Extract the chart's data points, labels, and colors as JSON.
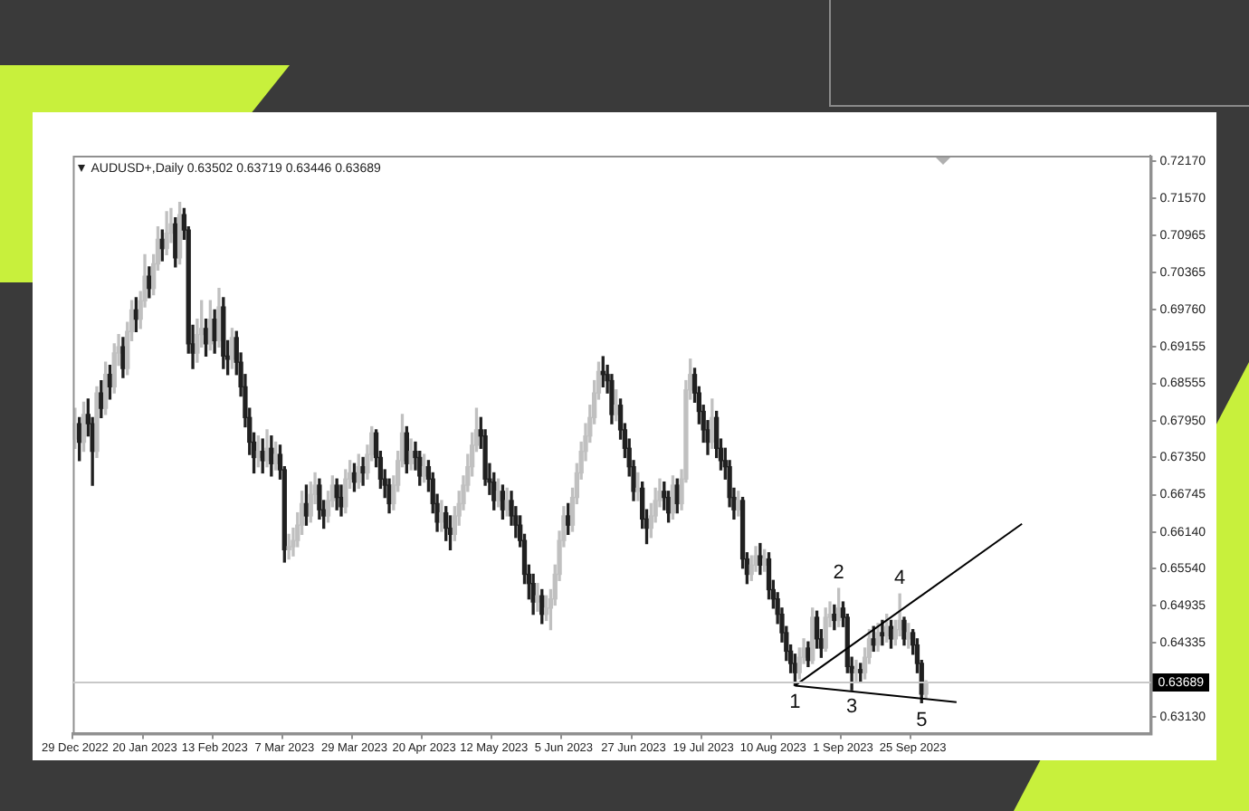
{
  "chart_data": {
    "type": "candlestick",
    "title": "AUDUSD+,Daily 0.63502 0.63719 0.63446 0.63689",
    "categories": [
      "29 Dec 2022",
      null,
      null,
      null,
      null,
      null,
      null,
      null,
      null,
      null,
      null,
      null,
      null,
      null,
      null,
      null,
      "20 Jan 2023",
      null,
      null,
      null,
      null,
      null,
      null,
      null,
      null,
      null,
      null,
      null,
      null,
      null,
      null,
      null,
      "13 Feb 2023",
      null,
      null,
      null,
      null,
      null,
      null,
      null,
      null,
      null,
      null,
      null,
      null,
      null,
      null,
      null,
      "7 Mar 2023",
      null,
      null,
      null,
      null,
      null,
      null,
      null,
      null,
      null,
      null,
      null,
      null,
      null,
      null,
      null,
      "29 Mar 2023",
      null,
      null,
      null,
      null,
      null,
      null,
      null,
      null,
      null,
      null,
      null,
      null,
      null,
      null,
      null,
      "20 Apr 2023",
      null,
      null,
      null,
      null,
      null,
      null,
      null,
      null,
      null,
      null,
      null,
      null,
      null,
      null,
      null,
      "12 May 2023",
      null,
      null,
      null,
      null,
      null,
      null,
      null,
      null,
      null,
      null,
      null,
      null,
      null,
      null,
      null,
      "5 Jun 2023",
      null,
      null,
      null,
      null,
      null,
      null,
      null,
      null,
      null,
      null,
      null,
      null,
      null,
      null,
      null,
      "27 Jun 2023",
      null,
      null,
      null,
      null,
      null,
      null,
      null,
      null,
      null,
      null,
      null,
      null,
      null,
      null,
      null,
      "19 Jul 2023",
      null,
      null,
      null,
      null,
      null,
      null,
      null,
      null,
      null,
      null,
      null,
      null,
      null,
      null,
      null,
      "10 Aug 2023",
      null,
      null,
      null,
      null,
      null,
      null,
      null,
      null,
      null,
      null,
      null,
      null,
      null,
      null,
      null,
      "1 Sep 2023",
      null,
      null,
      null,
      null,
      null,
      null,
      null,
      null,
      null,
      null,
      null,
      null,
      null,
      null,
      null,
      "25 Sep 2023",
      null,
      null,
      null,
      null,
      null,
      null,
      null,
      null,
      null,
      null,
      null,
      null,
      null,
      null,
      null,
      null,
      null,
      null,
      null,
      null,
      null,
      null,
      null,
      null,
      null,
      null,
      null,
      null,
      null,
      null,
      null,
      null,
      null,
      null,
      null,
      null,
      null,
      null,
      null,
      null,
      null,
      null,
      null,
      null,
      null,
      null,
      null,
      null,
      null,
      null,
      null,
      null,
      null,
      null
    ],
    "ohlc": [
      [
        0.6765,
        0.6815,
        0.675,
        0.679
      ],
      [
        0.679,
        0.68,
        0.673,
        0.676
      ],
      [
        0.676,
        0.6825,
        0.6745,
        0.6805
      ],
      [
        0.6805,
        0.683,
        0.677,
        0.679
      ],
      [
        0.679,
        0.68,
        0.669,
        0.6745
      ],
      [
        0.6745,
        0.685,
        0.6735,
        0.684
      ],
      [
        0.684,
        0.686,
        0.68,
        0.6815
      ],
      [
        0.6815,
        0.689,
        0.6805,
        0.687
      ],
      [
        0.687,
        0.6885,
        0.683,
        0.685
      ],
      [
        0.685,
        0.692,
        0.684,
        0.6905
      ],
      [
        0.6905,
        0.6935,
        0.6885,
        0.6915
      ],
      [
        0.6915,
        0.693,
        0.6865,
        0.688
      ],
      [
        0.688,
        0.6955,
        0.687,
        0.694
      ],
      [
        0.694,
        0.699,
        0.6925,
        0.6975
      ],
      [
        0.6975,
        0.6995,
        0.694,
        0.696
      ],
      [
        0.696,
        0.7005,
        0.6945,
        0.699
      ],
      [
        0.699,
        0.7065,
        0.698,
        0.703
      ],
      [
        0.703,
        0.7045,
        0.6995,
        0.701
      ],
      [
        0.701,
        0.7065,
        0.7,
        0.705
      ],
      [
        0.705,
        0.711,
        0.704,
        0.709
      ],
      [
        0.709,
        0.7105,
        0.7055,
        0.7075
      ],
      [
        0.7075,
        0.7135,
        0.7065,
        0.71
      ],
      [
        0.71,
        0.714,
        0.7085,
        0.7115
      ],
      [
        0.7115,
        0.7125,
        0.7045,
        0.706
      ],
      [
        0.706,
        0.715,
        0.705,
        0.713
      ],
      [
        0.713,
        0.714,
        0.709,
        0.7105
      ],
      [
        0.7105,
        0.711,
        0.6905,
        0.692
      ],
      [
        0.692,
        0.695,
        0.688,
        0.6905
      ],
      [
        0.6905,
        0.696,
        0.689,
        0.6935
      ],
      [
        0.6935,
        0.699,
        0.6915,
        0.6945
      ],
      [
        0.6945,
        0.696,
        0.69,
        0.692
      ],
      [
        0.692,
        0.699,
        0.691,
        0.696
      ],
      [
        0.696,
        0.6975,
        0.6905,
        0.6925
      ],
      [
        0.6925,
        0.701,
        0.6915,
        0.698
      ],
      [
        0.698,
        0.6995,
        0.688,
        0.69
      ],
      [
        0.69,
        0.6925,
        0.687,
        0.6895
      ],
      [
        0.6895,
        0.6945,
        0.688,
        0.693
      ],
      [
        0.693,
        0.694,
        0.687,
        0.689
      ],
      [
        0.689,
        0.6905,
        0.6835,
        0.685
      ],
      [
        0.685,
        0.687,
        0.6785,
        0.68
      ],
      [
        0.68,
        0.6815,
        0.674,
        0.676
      ],
      [
        0.676,
        0.6775,
        0.671,
        0.6735
      ],
      [
        0.6735,
        0.677,
        0.672,
        0.6745
      ],
      [
        0.6745,
        0.6765,
        0.671,
        0.673
      ],
      [
        0.673,
        0.678,
        0.672,
        0.675
      ],
      [
        0.675,
        0.677,
        0.6705,
        0.6725
      ],
      [
        0.6725,
        0.676,
        0.6715,
        0.674
      ],
      [
        0.674,
        0.6755,
        0.67,
        0.6715
      ],
      [
        0.6715,
        0.672,
        0.6565,
        0.6585
      ],
      [
        0.6585,
        0.661,
        0.657,
        0.659
      ],
      [
        0.659,
        0.662,
        0.6575,
        0.66
      ],
      [
        0.66,
        0.6645,
        0.659,
        0.6625
      ],
      [
        0.6625,
        0.668,
        0.661,
        0.666
      ],
      [
        0.666,
        0.669,
        0.6625,
        0.664
      ],
      [
        0.664,
        0.6695,
        0.663,
        0.6675
      ],
      [
        0.6675,
        0.671,
        0.666,
        0.669
      ],
      [
        0.669,
        0.67,
        0.6635,
        0.665
      ],
      [
        0.665,
        0.6665,
        0.662,
        0.664
      ],
      [
        0.664,
        0.668,
        0.663,
        0.6665
      ],
      [
        0.6665,
        0.6705,
        0.6655,
        0.669
      ],
      [
        0.669,
        0.67,
        0.665,
        0.667
      ],
      [
        0.667,
        0.669,
        0.664,
        0.6655
      ],
      [
        0.6655,
        0.6715,
        0.6645,
        0.67
      ],
      [
        0.67,
        0.673,
        0.6685,
        0.671
      ],
      [
        0.671,
        0.6725,
        0.668,
        0.6695
      ],
      [
        0.6695,
        0.674,
        0.6685,
        0.672
      ],
      [
        0.672,
        0.6735,
        0.669,
        0.671
      ],
      [
        0.671,
        0.6755,
        0.67,
        0.674
      ],
      [
        0.674,
        0.6785,
        0.673,
        0.6775
      ],
      [
        0.6775,
        0.678,
        0.672,
        0.6735
      ],
      [
        0.6735,
        0.6745,
        0.6685,
        0.67
      ],
      [
        0.67,
        0.6715,
        0.667,
        0.669
      ],
      [
        0.669,
        0.67,
        0.6645,
        0.666
      ],
      [
        0.666,
        0.6705,
        0.665,
        0.669
      ],
      [
        0.669,
        0.6745,
        0.668,
        0.673
      ],
      [
        0.673,
        0.6805,
        0.672,
        0.6775
      ],
      [
        0.6775,
        0.6785,
        0.671,
        0.6725
      ],
      [
        0.6725,
        0.6765,
        0.6715,
        0.6745
      ],
      [
        0.6745,
        0.676,
        0.6715,
        0.6735
      ],
      [
        0.6735,
        0.6745,
        0.669,
        0.6705
      ],
      [
        0.6705,
        0.674,
        0.6695,
        0.672
      ],
      [
        0.672,
        0.673,
        0.668,
        0.67
      ],
      [
        0.67,
        0.671,
        0.6645,
        0.666
      ],
      [
        0.666,
        0.6675,
        0.6615,
        0.663
      ],
      [
        0.663,
        0.6665,
        0.6615,
        0.6645
      ],
      [
        0.6645,
        0.6655,
        0.66,
        0.662
      ],
      [
        0.662,
        0.664,
        0.6585,
        0.661
      ],
      [
        0.661,
        0.6655,
        0.66,
        0.664
      ],
      [
        0.664,
        0.668,
        0.6625,
        0.666
      ],
      [
        0.666,
        0.6705,
        0.665,
        0.669
      ],
      [
        0.669,
        0.674,
        0.668,
        0.672
      ],
      [
        0.672,
        0.6775,
        0.6705,
        0.6755
      ],
      [
        0.6755,
        0.6815,
        0.6745,
        0.678
      ],
      [
        0.678,
        0.68,
        0.675,
        0.677
      ],
      [
        0.677,
        0.678,
        0.669,
        0.67
      ],
      [
        0.67,
        0.6725,
        0.6675,
        0.6695
      ],
      [
        0.6695,
        0.671,
        0.665,
        0.6665
      ],
      [
        0.6665,
        0.67,
        0.6655,
        0.668
      ],
      [
        0.668,
        0.669,
        0.6635,
        0.665
      ],
      [
        0.665,
        0.6685,
        0.664,
        0.6665
      ],
      [
        0.6665,
        0.668,
        0.6625,
        0.664
      ],
      [
        0.664,
        0.6655,
        0.6605,
        0.6625
      ],
      [
        0.6625,
        0.664,
        0.659,
        0.66
      ],
      [
        0.66,
        0.661,
        0.653,
        0.6545
      ],
      [
        0.6545,
        0.656,
        0.6505,
        0.653
      ],
      [
        0.653,
        0.6545,
        0.648,
        0.65
      ],
      [
        0.65,
        0.653,
        0.6485,
        0.651
      ],
      [
        0.651,
        0.652,
        0.6465,
        0.648
      ],
      [
        0.648,
        0.651,
        0.647,
        0.649
      ],
      [
        0.649,
        0.652,
        0.6455,
        0.6505
      ],
      [
        0.6505,
        0.656,
        0.6495,
        0.6545
      ],
      [
        0.6545,
        0.6615,
        0.6535,
        0.66
      ],
      [
        0.66,
        0.6655,
        0.659,
        0.664
      ],
      [
        0.664,
        0.666,
        0.661,
        0.6625
      ],
      [
        0.6625,
        0.6685,
        0.6615,
        0.667
      ],
      [
        0.667,
        0.6725,
        0.666,
        0.671
      ],
      [
        0.671,
        0.676,
        0.67,
        0.6745
      ],
      [
        0.6745,
        0.679,
        0.673,
        0.677
      ],
      [
        0.677,
        0.682,
        0.676,
        0.68
      ],
      [
        0.68,
        0.686,
        0.679,
        0.684
      ],
      [
        0.684,
        0.689,
        0.683,
        0.6875
      ],
      [
        0.6875,
        0.6899,
        0.685,
        0.687
      ],
      [
        0.687,
        0.6885,
        0.684,
        0.686
      ],
      [
        0.686,
        0.687,
        0.679,
        0.6805
      ],
      [
        0.6805,
        0.6845,
        0.6795,
        0.682
      ],
      [
        0.682,
        0.683,
        0.6765,
        0.678
      ],
      [
        0.678,
        0.679,
        0.6735,
        0.675
      ],
      [
        0.675,
        0.6765,
        0.6705,
        0.672
      ],
      [
        0.672,
        0.673,
        0.6665,
        0.668
      ],
      [
        0.668,
        0.671,
        0.6665,
        0.6685
      ],
      [
        0.6685,
        0.6695,
        0.662,
        0.6635
      ],
      [
        0.6635,
        0.665,
        0.6595,
        0.662
      ],
      [
        0.662,
        0.666,
        0.6605,
        0.664
      ],
      [
        0.664,
        0.6685,
        0.663,
        0.6665
      ],
      [
        0.6665,
        0.67,
        0.6655,
        0.668
      ],
      [
        0.668,
        0.6695,
        0.665,
        0.667
      ],
      [
        0.667,
        0.668,
        0.663,
        0.6645
      ],
      [
        0.6645,
        0.6705,
        0.6635,
        0.669
      ],
      [
        0.669,
        0.67,
        0.6645,
        0.666
      ],
      [
        0.666,
        0.6715,
        0.665,
        0.67
      ],
      [
        0.67,
        0.686,
        0.6695,
        0.6845
      ],
      [
        0.6845,
        0.6895,
        0.683,
        0.687
      ],
      [
        0.687,
        0.688,
        0.6825,
        0.684
      ],
      [
        0.684,
        0.685,
        0.679,
        0.681
      ],
      [
        0.681,
        0.682,
        0.676,
        0.678
      ],
      [
        0.678,
        0.6795,
        0.674,
        0.676
      ],
      [
        0.676,
        0.683,
        0.675,
        0.68
      ],
      [
        0.68,
        0.681,
        0.6735,
        0.675
      ],
      [
        0.675,
        0.6765,
        0.6715,
        0.673
      ],
      [
        0.673,
        0.675,
        0.67,
        0.672
      ],
      [
        0.672,
        0.673,
        0.6655,
        0.667
      ],
      [
        0.667,
        0.6685,
        0.6635,
        0.665
      ],
      [
        0.665,
        0.668,
        0.664,
        0.6665
      ],
      [
        0.6665,
        0.667,
        0.6555,
        0.657
      ],
      [
        0.657,
        0.658,
        0.653,
        0.6545
      ],
      [
        0.6545,
        0.6575,
        0.6535,
        0.656
      ],
      [
        0.656,
        0.659,
        0.655,
        0.6575
      ],
      [
        0.6575,
        0.6595,
        0.6545,
        0.656
      ],
      [
        0.656,
        0.6585,
        0.655,
        0.657
      ],
      [
        0.657,
        0.658,
        0.6505,
        0.652
      ],
      [
        0.652,
        0.6535,
        0.649,
        0.6505
      ],
      [
        0.6505,
        0.6515,
        0.6465,
        0.648
      ],
      [
        0.648,
        0.649,
        0.6435,
        0.645
      ],
      [
        0.645,
        0.646,
        0.6405,
        0.642
      ],
      [
        0.642,
        0.643,
        0.6385,
        0.64
      ],
      [
        0.64,
        0.6415,
        0.6364,
        0.6385
      ],
      [
        0.6385,
        0.6425,
        0.6375,
        0.641
      ],
      [
        0.641,
        0.644,
        0.64,
        0.6425
      ],
      [
        0.6425,
        0.6435,
        0.6395,
        0.6405
      ],
      [
        0.6405,
        0.649,
        0.64,
        0.6475
      ],
      [
        0.6475,
        0.6485,
        0.6425,
        0.644
      ],
      [
        0.644,
        0.6455,
        0.641,
        0.6425
      ],
      [
        0.6425,
        0.649,
        0.642,
        0.6475
      ],
      [
        0.6475,
        0.65,
        0.646,
        0.648
      ],
      [
        0.648,
        0.6495,
        0.6455,
        0.647
      ],
      [
        0.647,
        0.6522,
        0.646,
        0.649
      ],
      [
        0.649,
        0.65,
        0.646,
        0.6475
      ],
      [
        0.6475,
        0.648,
        0.6385,
        0.6395
      ],
      [
        0.6395,
        0.641,
        0.6357,
        0.6385
      ],
      [
        0.6385,
        0.6405,
        0.637,
        0.639
      ],
      [
        0.639,
        0.64,
        0.637,
        0.6385
      ],
      [
        0.6385,
        0.6425,
        0.6375,
        0.641
      ],
      [
        0.641,
        0.6455,
        0.64,
        0.644
      ],
      [
        0.644,
        0.646,
        0.642,
        0.643
      ],
      [
        0.643,
        0.6465,
        0.642,
        0.645
      ],
      [
        0.645,
        0.647,
        0.643,
        0.6445
      ],
      [
        0.6445,
        0.648,
        0.6435,
        0.646
      ],
      [
        0.646,
        0.647,
        0.6425,
        0.644
      ],
      [
        0.644,
        0.647,
        0.643,
        0.6455
      ],
      [
        0.6455,
        0.6513,
        0.6445,
        0.647
      ],
      [
        0.647,
        0.6475,
        0.643,
        0.644
      ],
      [
        0.644,
        0.6465,
        0.6425,
        0.645
      ],
      [
        0.645,
        0.6455,
        0.6415,
        0.643
      ],
      [
        0.643,
        0.644,
        0.6385,
        0.64
      ],
      [
        0.64,
        0.6405,
        0.6336,
        0.635
      ],
      [
        0.63502,
        0.63719,
        0.63446,
        0.63689
      ],
      null,
      null,
      null,
      null,
      null,
      null,
      null,
      null,
      null,
      null,
      null,
      null,
      null,
      null,
      null,
      null,
      null,
      null,
      null,
      null,
      null,
      null,
      null,
      null,
      null,
      null,
      null,
      null,
      null,
      null,
      null,
      null,
      null,
      null,
      null,
      null,
      null,
      null,
      null,
      null,
      null,
      null,
      null,
      null,
      null,
      null,
      null,
      null,
      null,
      null,
      null
    ],
    "colors": [
      "#c0c0c0",
      "#202020",
      "#c0c0c0",
      "#202020",
      "#202020",
      "#c0c0c0",
      "#202020",
      "#c0c0c0",
      "#202020",
      "#c0c0c0",
      "#c0c0c0",
      "#202020",
      "#c0c0c0",
      "#c0c0c0",
      "#202020",
      "#c0c0c0",
      "#c0c0c0",
      "#202020",
      "#c0c0c0",
      "#c0c0c0",
      "#202020",
      "#c0c0c0",
      "#c0c0c0",
      "#202020",
      "#c0c0c0",
      "#202020",
      "#202020",
      "#202020",
      "#c0c0c0",
      "#c0c0c0",
      "#202020",
      "#c0c0c0",
      "#202020",
      "#c0c0c0",
      "#202020",
      "#202020",
      "#c0c0c0",
      "#202020",
      "#202020",
      "#202020",
      "#202020",
      "#202020",
      "#c0c0c0",
      "#202020",
      "#c0c0c0",
      "#202020",
      "#c0c0c0",
      "#202020",
      "#202020",
      "#c0c0c0",
      "#c0c0c0",
      "#c0c0c0",
      "#c0c0c0",
      "#202020",
      "#c0c0c0",
      "#c0c0c0",
      "#202020",
      "#202020",
      "#c0c0c0",
      "#c0c0c0",
      "#202020",
      "#202020",
      "#c0c0c0",
      "#c0c0c0",
      "#202020",
      "#c0c0c0",
      "#202020",
      "#c0c0c0",
      "#c0c0c0",
      "#202020",
      "#202020",
      "#202020",
      "#202020",
      "#c0c0c0",
      "#c0c0c0",
      "#c0c0c0",
      "#202020",
      "#c0c0c0",
      "#202020",
      "#202020",
      "#c0c0c0",
      "#202020",
      "#202020",
      "#202020",
      "#c0c0c0",
      "#202020",
      "#202020",
      "#c0c0c0",
      "#c0c0c0",
      "#c0c0c0",
      "#c0c0c0",
      "#c0c0c0",
      "#c0c0c0",
      "#202020",
      "#202020",
      "#202020",
      "#202020",
      "#c0c0c0",
      "#202020",
      "#c0c0c0",
      "#202020",
      "#202020",
      "#202020",
      "#202020",
      "#202020",
      "#202020",
      "#c0c0c0",
      "#202020",
      "#c0c0c0",
      "#c0c0c0",
      "#c0c0c0",
      "#c0c0c0",
      "#c0c0c0",
      "#202020",
      "#c0c0c0",
      "#c0c0c0",
      "#c0c0c0",
      "#c0c0c0",
      "#c0c0c0",
      "#c0c0c0",
      "#c0c0c0",
      "#202020",
      "#202020",
      "#202020",
      "#c0c0c0",
      "#202020",
      "#202020",
      "#202020",
      "#202020",
      "#c0c0c0",
      "#202020",
      "#202020",
      "#c0c0c0",
      "#c0c0c0",
      "#c0c0c0",
      "#202020",
      "#202020",
      "#c0c0c0",
      "#202020",
      "#c0c0c0",
      "#c0c0c0",
      "#c0c0c0",
      "#202020",
      "#202020",
      "#202020",
      "#202020",
      "#c0c0c0",
      "#202020",
      "#202020",
      "#202020",
      "#202020",
      "#202020",
      "#c0c0c0",
      "#202020",
      "#202020",
      "#c0c0c0",
      "#c0c0c0",
      "#202020",
      "#c0c0c0",
      "#202020",
      "#202020",
      "#202020",
      "#202020",
      "#202020",
      "#202020",
      "#202020",
      "#c0c0c0",
      "#c0c0c0",
      "#202020",
      "#c0c0c0",
      "#202020",
      "#202020",
      "#c0c0c0",
      "#c0c0c0",
      "#202020",
      "#c0c0c0",
      "#202020",
      "#202020",
      "#202020",
      "#c0c0c0",
      "#202020",
      "#c0c0c0",
      "#c0c0c0",
      "#202020",
      "#c0c0c0",
      "#202020",
      "#c0c0c0",
      "#202020",
      "#c0c0c0",
      "#c0c0c0",
      "#202020",
      "#c0c0c0",
      "#202020",
      "#202020",
      "#202020",
      "#c0c0c0",
      null,
      null,
      null,
      null,
      null,
      null,
      null,
      null,
      null,
      null,
      null,
      null,
      null,
      null,
      null,
      null,
      null,
      null,
      null,
      null,
      null,
      null,
      null,
      null,
      null,
      null,
      null,
      null,
      null,
      null,
      null,
      null,
      null,
      null,
      null,
      null,
      null,
      null,
      null,
      null,
      null,
      null,
      null,
      null,
      null,
      null,
      null,
      null,
      null,
      null,
      null
    ],
    "series": [
      {
        "type": "line",
        "values": [
          null,
          null,
          null,
          null,
          null,
          null,
          null,
          null,
          null,
          null,
          null,
          null,
          null,
          null,
          null,
          null,
          null,
          null,
          null,
          null,
          null,
          null,
          null,
          null,
          null,
          null,
          null,
          null,
          null,
          null,
          null,
          null,
          null,
          null,
          null,
          null,
          null,
          null,
          null,
          null,
          null,
          null,
          null,
          null,
          null,
          null,
          null,
          null,
          null,
          null,
          null,
          null,
          null,
          null,
          null,
          null,
          null,
          null,
          null,
          null,
          null,
          null,
          null,
          null,
          null,
          null,
          null,
          null,
          null,
          null,
          null,
          null,
          null,
          null,
          null,
          null,
          null,
          null,
          null,
          null,
          null,
          null,
          null,
          null,
          null,
          null,
          null,
          null,
          null,
          null,
          null,
          null,
          null,
          null,
          null,
          null,
          null,
          null,
          null,
          null,
          null,
          null,
          null,
          null,
          null,
          null,
          null,
          null,
          null,
          null,
          null,
          null,
          null,
          null,
          null,
          null,
          null,
          null,
          null,
          null,
          null,
          null,
          null,
          null,
          null,
          null,
          null,
          null,
          null,
          null,
          null,
          null,
          null,
          null,
          null,
          null,
          null,
          null,
          null,
          null,
          null,
          null,
          null,
          null,
          null,
          null,
          null,
          null,
          null,
          null,
          null,
          null,
          null,
          null,
          null,
          null,
          null,
          null,
          null,
          null,
          null,
          null,
          null,
          null,
          null,
          0.6364,
          null,
          null,
          null,
          null,
          null,
          null,
          null,
          null,
          null,
          null,
          null,
          null,
          null,
          null,
          null,
          null,
          null,
          null,
          null,
          null,
          null,
          null,
          null,
          null,
          null,
          null,
          null,
          null,
          null,
          null,
          null,
          null,
          null,
          null,
          null,
          null,
          null,
          null,
          null,
          null,
          null,
          null,
          null,
          null,
          null,
          null,
          null,
          null,
          null,
          null,
          null,
          0.6627,
          null,
          null,
          null,
          null,
          null,
          null,
          null,
          null,
          null,
          null,
          null,
          null,
          null,
          null,
          null,
          null,
          null,
          null,
          null,
          null,
          null,
          null,
          null,
          null,
          null,
          null,
          null,
          null,
          null
        ],
        "color": "#000000"
      },
      {
        "type": "line",
        "values": [
          null,
          null,
          null,
          null,
          null,
          null,
          null,
          null,
          null,
          null,
          null,
          null,
          null,
          null,
          null,
          null,
          null,
          null,
          null,
          null,
          null,
          null,
          null,
          null,
          null,
          null,
          null,
          null,
          null,
          null,
          null,
          null,
          null,
          null,
          null,
          null,
          null,
          null,
          null,
          null,
          null,
          null,
          null,
          null,
          null,
          null,
          null,
          null,
          null,
          null,
          null,
          null,
          null,
          null,
          null,
          null,
          null,
          null,
          null,
          null,
          null,
          null,
          null,
          null,
          null,
          null,
          null,
          null,
          null,
          null,
          null,
          null,
          null,
          null,
          null,
          null,
          null,
          null,
          null,
          null,
          null,
          null,
          null,
          null,
          null,
          null,
          null,
          null,
          null,
          null,
          null,
          null,
          null,
          null,
          null,
          null,
          null,
          null,
          null,
          null,
          null,
          null,
          null,
          null,
          null,
          null,
          null,
          null,
          null,
          null,
          null,
          null,
          null,
          null,
          null,
          null,
          null,
          null,
          null,
          null,
          null,
          null,
          null,
          null,
          null,
          null,
          null,
          null,
          null,
          null,
          null,
          null,
          null,
          null,
          null,
          null,
          null,
          null,
          null,
          null,
          null,
          null,
          null,
          null,
          null,
          null,
          null,
          null,
          null,
          null,
          null,
          null,
          null,
          null,
          null,
          null,
          null,
          null,
          null,
          null,
          null,
          null,
          null,
          null,
          null,
          0.6364,
          null,
          null,
          null,
          null,
          null,
          null,
          null,
          null,
          null,
          null,
          null,
          null,
          null,
          null,
          null,
          null,
          null,
          null,
          null,
          null,
          null,
          null,
          null,
          null,
          null,
          null,
          null,
          null,
          null,
          null,
          null,
          null,
          null,
          null,
          null,
          null,
          0.6337,
          null,
          null,
          null,
          null,
          null,
          null,
          null,
          null,
          null,
          null,
          null,
          null,
          null,
          null,
          null,
          null,
          null,
          null,
          null,
          null,
          null,
          null,
          null,
          null,
          null,
          null,
          null,
          null,
          null,
          null,
          null,
          null,
          null,
          null,
          null,
          null,
          null,
          null,
          null,
          null,
          null,
          null,
          null,
          null
        ],
        "color": "#000000"
      }
    ],
    "ylim": [
      0.6286,
      0.7226
    ],
    "yticks": [
      {
        "value": 0.7217,
        "label": "0.72170"
      },
      {
        "value": 0.7157,
        "label": "0.71570"
      },
      0.70965,
      0.70365,
      {
        "value": 0.6976,
        "label": "0.69760"
      },
      0.69155,
      0.68555,
      {
        "value": 0.6795,
        "label": "0.67950"
      },
      {
        "value": 0.6735,
        "label": "0.67350"
      },
      0.66745,
      {
        "value": 0.6614,
        "label": "0.66140"
      },
      {
        "value": 0.6554,
        "label": "0.65540"
      },
      0.64935,
      0.64335,
      {
        "value": 0.6313,
        "label": "0.63130"
      }
    ],
    "ref_lines": [
      {
        "axis": "y",
        "value": 0.63689,
        "label": "0.63689",
        "color": "#c8c8c8"
      }
    ],
    "annotations": [
      {
        "text": "1",
        "y": 0.6364
      },
      {
        "text": "2",
        "y": 0.6522
      },
      {
        "text": "3",
        "y": 0.6357
      },
      {
        "text": "4",
        "y": 0.6513
      },
      {
        "text": "5",
        "y": 0.6336
      }
    ],
    "grid": false,
    "legend": false,
    "marker": "none"
  }
}
